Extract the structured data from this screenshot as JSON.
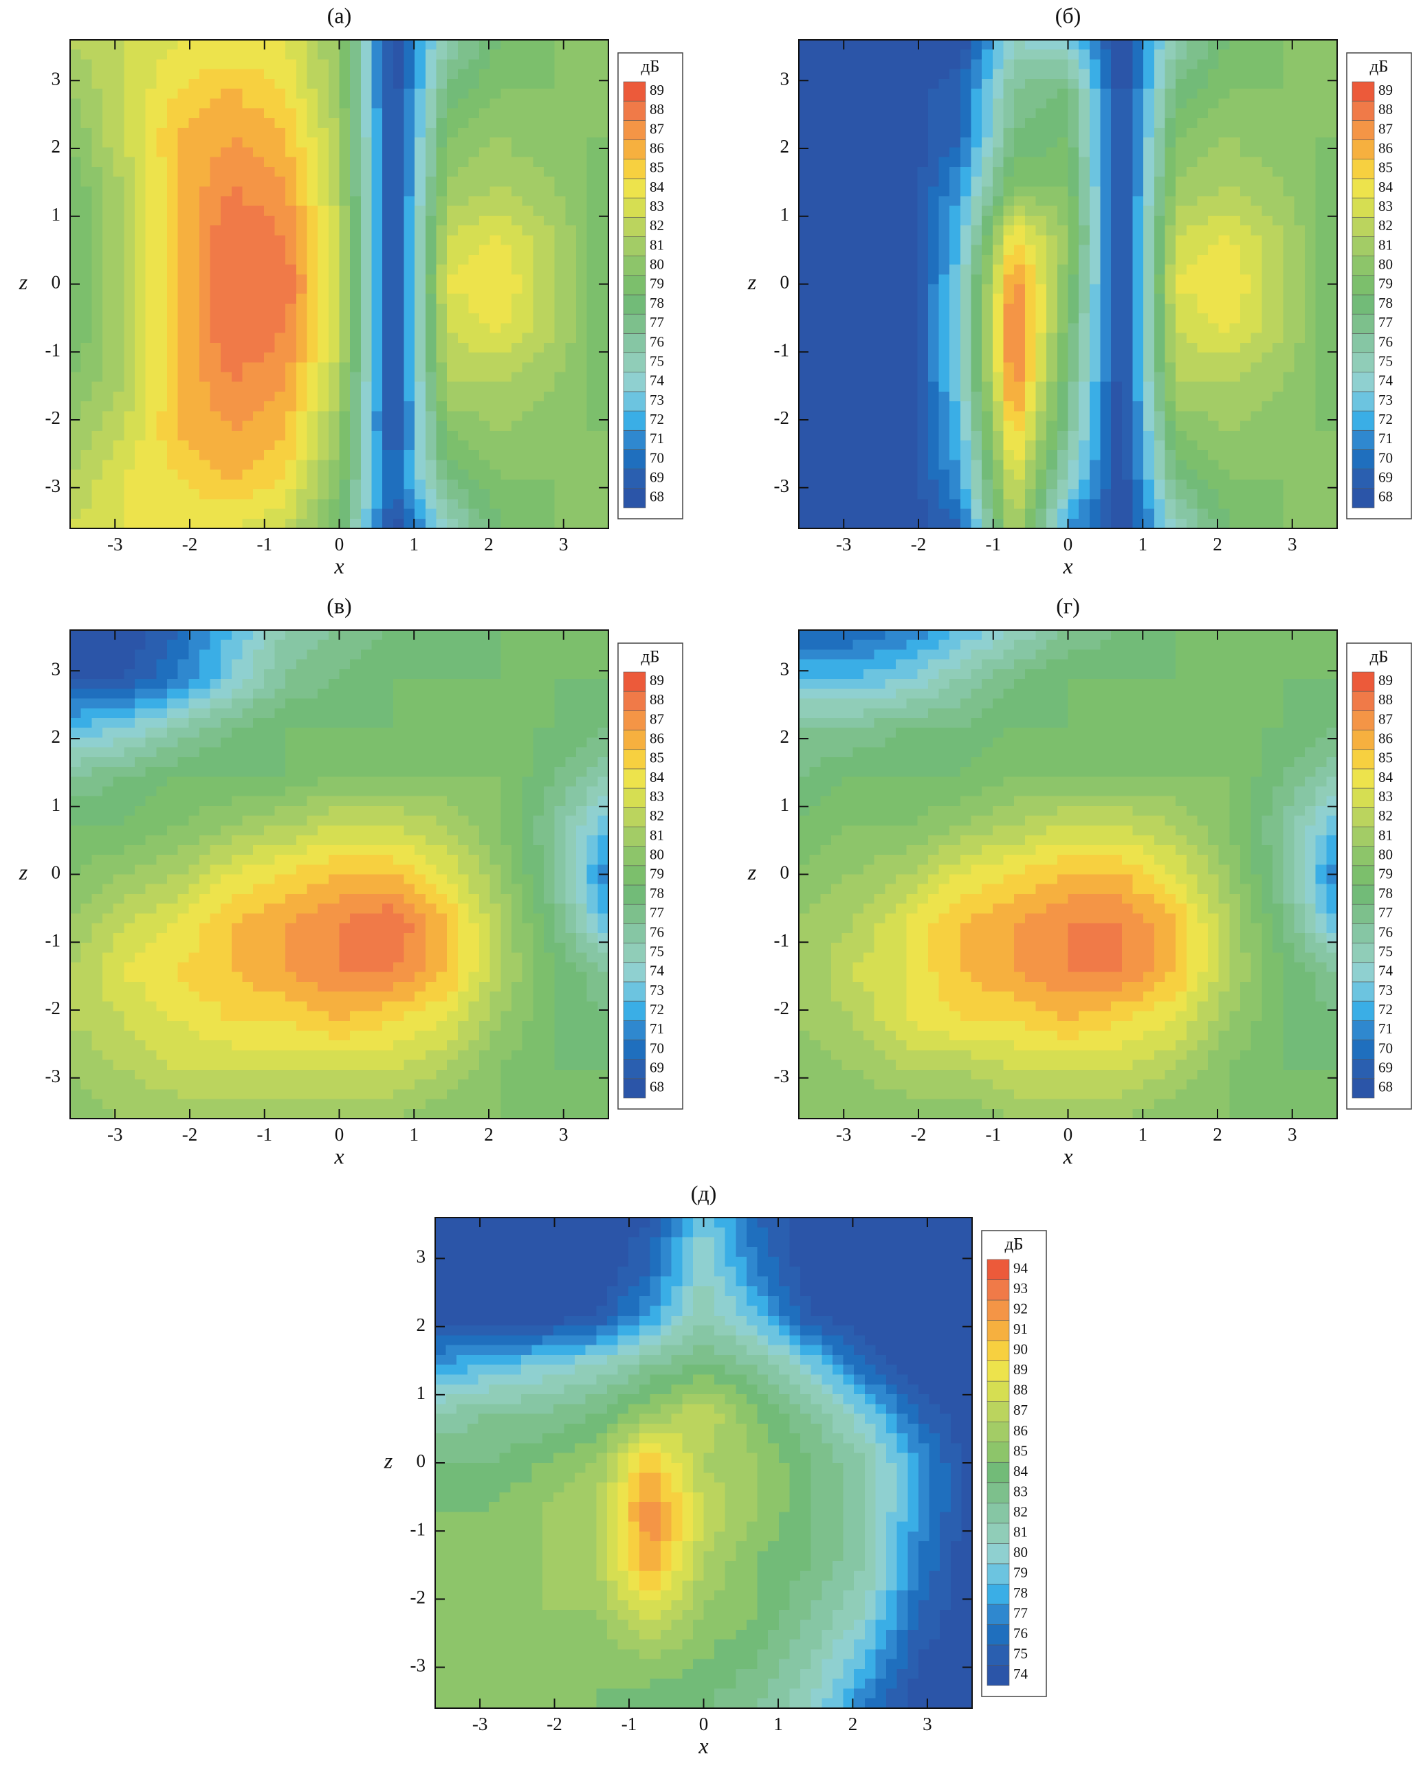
{
  "chart_data": [
    {
      "type": "contour",
      "title": "(а)",
      "x_label": "x",
      "y_label": "z",
      "xlim": [
        -3.6,
        3.6
      ],
      "ylim": [
        -3.6,
        3.6
      ],
      "xticks": [
        -3,
        -2,
        -1,
        0,
        1,
        2,
        3
      ],
      "yticks": [
        -3,
        -2,
        -1,
        0,
        1,
        2,
        3
      ],
      "x": [
        -3.6,
        -2.88,
        -2.16,
        -1.44,
        -0.72,
        0,
        0.72,
        1.44,
        2.16,
        2.88,
        3.6
      ],
      "z": [
        3.6,
        2.88,
        2.16,
        1.44,
        0.72,
        0,
        -0.72,
        -1.44,
        -2.16,
        -2.88,
        -3.6
      ],
      "values": [
        [
          82,
          83,
          84,
          84,
          84,
          81,
          68,
          76,
          79,
          80,
          80
        ],
        [
          81,
          83,
          85,
          86,
          85,
          81,
          68,
          78,
          80,
          80,
          80
        ],
        [
          80,
          83,
          86,
          87,
          86,
          82,
          68,
          80,
          81,
          80,
          80
        ],
        [
          79,
          82,
          86,
          88,
          87,
          82,
          68,
          81,
          82,
          81,
          79
        ],
        [
          79,
          82,
          86,
          89,
          88,
          83,
          68,
          83,
          84,
          82,
          79
        ],
        [
          79,
          82,
          86,
          89,
          89,
          83,
          68,
          84,
          85,
          82,
          79
        ],
        [
          79,
          82,
          86,
          89,
          88,
          83,
          68,
          83,
          84,
          82,
          79
        ],
        [
          80,
          82,
          86,
          88,
          87,
          82,
          68,
          82,
          82,
          81,
          79
        ],
        [
          81,
          83,
          86,
          87,
          86,
          81,
          68,
          80,
          81,
          80,
          80
        ],
        [
          82,
          84,
          85,
          86,
          85,
          80,
          70,
          78,
          80,
          80,
          80
        ],
        [
          83,
          84,
          84,
          84,
          83,
          79,
          68,
          75,
          79,
          80,
          80
        ]
      ],
      "colorbar_title": "дБ",
      "levels": [
        68,
        69,
        70,
        71,
        72,
        73,
        74,
        75,
        76,
        77,
        78,
        79,
        80,
        81,
        82,
        83,
        84,
        85,
        86,
        87,
        88,
        89
      ],
      "colors": [
        "#2b55a8",
        "#2a5fb0",
        "#1f6fbe",
        "#2f88cf",
        "#3aaee6",
        "#6cc4e0",
        "#8fd0d0",
        "#90cdb8",
        "#86c6a4",
        "#7dc08c",
        "#72bb78",
        "#7cbf6c",
        "#8dc56a",
        "#a3cc66",
        "#bbd45e",
        "#d6de52",
        "#ede34c",
        "#f7d040",
        "#f6b03f",
        "#f49546",
        "#f07a48",
        "#ec5a3a"
      ]
    },
    {
      "type": "contour",
      "title": "(б)",
      "x_label": "x",
      "y_label": "z",
      "xlim": [
        -3.6,
        3.6
      ],
      "ylim": [
        -3.6,
        3.6
      ],
      "xticks": [
        -3,
        -2,
        -1,
        0,
        1,
        2,
        3
      ],
      "yticks": [
        -3,
        -2,
        -1,
        0,
        1,
        2,
        3
      ],
      "x": [
        -3.6,
        -2.88,
        -2.16,
        -1.44,
        -0.72,
        0,
        0.72,
        1.44,
        2.16,
        2.88,
        3.6
      ],
      "z": [
        3.6,
        2.88,
        2.16,
        1.44,
        0.72,
        0,
        -0.72,
        -1.44,
        -2.16,
        -2.88,
        -3.6
      ],
      "values": [
        [
          68,
          68,
          68,
          68,
          75,
          74,
          68,
          76,
          79,
          80,
          80
        ],
        [
          68,
          68,
          68,
          70,
          77,
          78,
          68,
          78,
          80,
          80,
          80
        ],
        [
          68,
          68,
          68,
          70,
          78,
          79,
          68,
          80,
          81,
          80,
          80
        ],
        [
          68,
          68,
          68,
          72,
          80,
          80,
          68,
          81,
          82,
          81,
          79
        ],
        [
          68,
          68,
          68,
          73,
          85,
          81,
          68,
          83,
          84,
          82,
          79
        ],
        [
          68,
          68,
          68,
          74,
          88,
          80,
          68,
          84,
          85,
          82,
          79
        ],
        [
          68,
          68,
          68,
          74,
          89,
          79,
          68,
          83,
          84,
          82,
          79
        ],
        [
          68,
          68,
          68,
          74,
          88,
          78,
          68,
          82,
          82,
          81,
          79
        ],
        [
          68,
          68,
          68,
          73,
          86,
          77,
          68,
          80,
          81,
          80,
          80
        ],
        [
          68,
          68,
          68,
          72,
          84,
          75,
          68,
          78,
          80,
          80,
          80
        ],
        [
          68,
          68,
          68,
          70,
          82,
          72,
          68,
          75,
          79,
          80,
          80
        ]
      ],
      "colorbar_title": "дБ",
      "levels": [
        68,
        69,
        70,
        71,
        72,
        73,
        74,
        75,
        76,
        77,
        78,
        79,
        80,
        81,
        82,
        83,
        84,
        85,
        86,
        87,
        88,
        89
      ],
      "colors": [
        "#2b55a8",
        "#2a5fb0",
        "#1f6fbe",
        "#2f88cf",
        "#3aaee6",
        "#6cc4e0",
        "#8fd0d0",
        "#90cdb8",
        "#86c6a4",
        "#7dc08c",
        "#72bb78",
        "#7cbf6c",
        "#8dc56a",
        "#a3cc66",
        "#bbd45e",
        "#d6de52",
        "#ede34c",
        "#f7d040",
        "#f6b03f",
        "#f49546",
        "#f07a48",
        "#ec5a3a"
      ]
    },
    {
      "type": "contour",
      "title": "(в)",
      "x_label": "x",
      "y_label": "z",
      "xlim": [
        -3.6,
        3.6
      ],
      "ylim": [
        -3.6,
        3.6
      ],
      "xticks": [
        -3,
        -2,
        -1,
        0,
        1,
        2,
        3
      ],
      "yticks": [
        -3,
        -2,
        -1,
        0,
        1,
        2,
        3
      ],
      "x": [
        -3.6,
        -2.88,
        -2.16,
        -1.44,
        -0.72,
        0,
        0.72,
        1.44,
        2.16,
        2.88,
        3.6
      ],
      "z": [
        3.6,
        2.88,
        2.16,
        1.44,
        0.72,
        0,
        -0.72,
        -1.44,
        -2.16,
        -2.88,
        -3.6
      ],
      "values": [
        [
          69,
          68,
          70,
          73,
          76,
          77,
          78,
          78,
          79,
          79,
          79
        ],
        [
          69,
          69,
          71,
          74,
          77,
          78,
          79,
          79,
          79,
          79,
          79
        ],
        [
          73,
          74,
          76,
          78,
          79,
          79,
          79,
          79,
          79,
          79,
          78
        ],
        [
          77,
          78,
          79,
          79,
          79,
          80,
          80,
          80,
          80,
          78,
          76
        ],
        [
          79,
          79,
          80,
          81,
          82,
          83,
          83,
          82,
          80,
          77,
          73
        ],
        [
          80,
          81,
          82,
          84,
          85,
          86,
          86,
          84,
          81,
          77,
          71
        ],
        [
          81,
          83,
          84,
          86,
          87,
          88,
          89,
          86,
          82,
          78,
          73
        ],
        [
          82,
          84,
          85,
          86,
          87,
          88,
          88,
          86,
          82,
          79,
          77
        ],
        [
          82,
          83,
          84,
          85,
          85,
          86,
          85,
          84,
          81,
          79,
          78
        ],
        [
          81,
          82,
          83,
          83,
          83,
          83,
          83,
          82,
          80,
          79,
          79
        ],
        [
          80,
          81,
          81,
          81,
          81,
          81,
          81,
          80,
          80,
          79,
          79
        ]
      ],
      "colorbar_title": "дБ",
      "levels": [
        68,
        69,
        70,
        71,
        72,
        73,
        74,
        75,
        76,
        77,
        78,
        79,
        80,
        81,
        82,
        83,
        84,
        85,
        86,
        87,
        88,
        89
      ],
      "colors": [
        "#2b55a8",
        "#2a5fb0",
        "#1f6fbe",
        "#2f88cf",
        "#3aaee6",
        "#6cc4e0",
        "#8fd0d0",
        "#90cdb8",
        "#86c6a4",
        "#7dc08c",
        "#72bb78",
        "#7cbf6c",
        "#8dc56a",
        "#a3cc66",
        "#bbd45e",
        "#d6de52",
        "#ede34c",
        "#f7d040",
        "#f6b03f",
        "#f49546",
        "#f07a48",
        "#ec5a3a"
      ]
    },
    {
      "type": "contour",
      "title": "(г)",
      "x_label": "x",
      "y_label": "z",
      "xlim": [
        -3.6,
        3.6
      ],
      "ylim": [
        -3.6,
        3.6
      ],
      "xticks": [
        -3,
        -2,
        -1,
        0,
        1,
        2,
        3
      ],
      "yticks": [
        -3,
        -2,
        -1,
        0,
        1,
        2,
        3
      ],
      "x": [
        -3.6,
        -2.88,
        -2.16,
        -1.44,
        -0.72,
        0,
        0.72,
        1.44,
        2.16,
        2.88,
        3.6
      ],
      "z": [
        3.6,
        2.88,
        2.16,
        1.44,
        0.72,
        0,
        -0.72,
        -1.44,
        -2.16,
        -2.88,
        -3.6
      ],
      "values": [
        [
          70,
          70,
          71,
          73,
          75,
          77,
          78,
          79,
          79,
          79,
          79
        ],
        [
          73,
          73,
          74,
          76,
          78,
          79,
          79,
          79,
          79,
          79,
          79
        ],
        [
          77,
          77,
          78,
          78,
          79,
          79,
          79,
          79,
          79,
          79,
          78
        ],
        [
          78,
          79,
          79,
          79,
          80,
          80,
          80,
          80,
          80,
          78,
          76
        ],
        [
          79,
          80,
          80,
          81,
          82,
          83,
          83,
          82,
          80,
          77,
          73
        ],
        [
          80,
          81,
          82,
          84,
          85,
          86,
          86,
          84,
          81,
          77,
          71
        ],
        [
          81,
          82,
          84,
          86,
          87,
          88,
          88,
          86,
          82,
          78,
          73
        ],
        [
          81,
          83,
          84,
          86,
          87,
          88,
          88,
          86,
          82,
          79,
          77
        ],
        [
          81,
          82,
          84,
          85,
          85,
          86,
          85,
          84,
          81,
          79,
          78
        ],
        [
          80,
          81,
          82,
          82,
          83,
          83,
          83,
          82,
          80,
          79,
          79
        ],
        [
          80,
          80,
          80,
          80,
          81,
          81,
          81,
          80,
          80,
          79,
          79
        ]
      ],
      "colorbar_title": "дБ",
      "levels": [
        68,
        69,
        70,
        71,
        72,
        73,
        74,
        75,
        76,
        77,
        78,
        79,
        80,
        81,
        82,
        83,
        84,
        85,
        86,
        87,
        88,
        89
      ],
      "colors": [
        "#2b55a8",
        "#2a5fb0",
        "#1f6fbe",
        "#2f88cf",
        "#3aaee6",
        "#6cc4e0",
        "#8fd0d0",
        "#90cdb8",
        "#86c6a4",
        "#7dc08c",
        "#72bb78",
        "#7cbf6c",
        "#8dc56a",
        "#a3cc66",
        "#bbd45e",
        "#d6de52",
        "#ede34c",
        "#f7d040",
        "#f6b03f",
        "#f49546",
        "#f07a48",
        "#ec5a3a"
      ]
    },
    {
      "type": "contour",
      "title": "(д)",
      "x_label": "x",
      "y_label": "z",
      "xlim": [
        -3.6,
        3.6
      ],
      "ylim": [
        -3.6,
        3.6
      ],
      "xticks": [
        -3,
        -2,
        -1,
        0,
        1,
        2,
        3
      ],
      "yticks": [
        -3,
        -2,
        -1,
        0,
        1,
        2,
        3
      ],
      "x": [
        -3.6,
        -2.88,
        -2.16,
        -1.44,
        -0.72,
        0,
        0.72,
        1.44,
        2.16,
        2.88,
        3.6
      ],
      "z": [
        3.6,
        2.88,
        2.16,
        1.44,
        0.72,
        0,
        -0.72,
        -1.44,
        -2.16,
        -2.88,
        -3.6
      ],
      "values": [
        [
          74,
          74,
          74,
          74,
          75,
          80,
          76,
          74,
          74,
          74,
          74
        ],
        [
          74,
          74,
          74,
          74,
          76,
          81,
          77,
          74,
          74,
          74,
          74
        ],
        [
          74,
          74,
          74,
          75,
          78,
          82,
          79,
          75,
          74,
          74,
          74
        ],
        [
          78,
          79,
          80,
          81,
          83,
          84,
          83,
          80,
          76,
          74,
          74
        ],
        [
          82,
          83,
          83,
          84,
          86,
          88,
          85,
          83,
          80,
          76,
          74
        ],
        [
          84,
          84,
          85,
          86,
          91,
          87,
          86,
          84,
          82,
          78,
          74
        ],
        [
          85,
          85,
          86,
          87,
          93,
          88,
          86,
          84,
          82,
          78,
          74
        ],
        [
          85,
          85,
          86,
          87,
          92,
          87,
          85,
          84,
          82,
          77,
          74
        ],
        [
          85,
          85,
          86,
          86,
          89,
          86,
          85,
          83,
          81,
          76,
          74
        ],
        [
          85,
          85,
          85,
          85,
          86,
          85,
          84,
          82,
          79,
          75,
          74
        ],
        [
          85,
          85,
          85,
          85,
          84,
          84,
          83,
          81,
          77,
          74,
          74
        ]
      ],
      "colorbar_title": "дБ",
      "levels": [
        74,
        75,
        76,
        77,
        78,
        79,
        80,
        81,
        82,
        83,
        84,
        85,
        86,
        87,
        88,
        89,
        90,
        91,
        92,
        93,
        94
      ],
      "colors": [
        "#2b55a8",
        "#2a5fb0",
        "#1f6fbe",
        "#2f88cf",
        "#3aaee6",
        "#6cc4e0",
        "#8fd0d0",
        "#90cdb8",
        "#86c6a4",
        "#7dc08c",
        "#72bb78",
        "#8dc56a",
        "#a3cc66",
        "#bbd45e",
        "#d6de52",
        "#ede34c",
        "#f7d040",
        "#f6b03f",
        "#f49546",
        "#f07a48",
        "#ec5a3a"
      ]
    }
  ]
}
